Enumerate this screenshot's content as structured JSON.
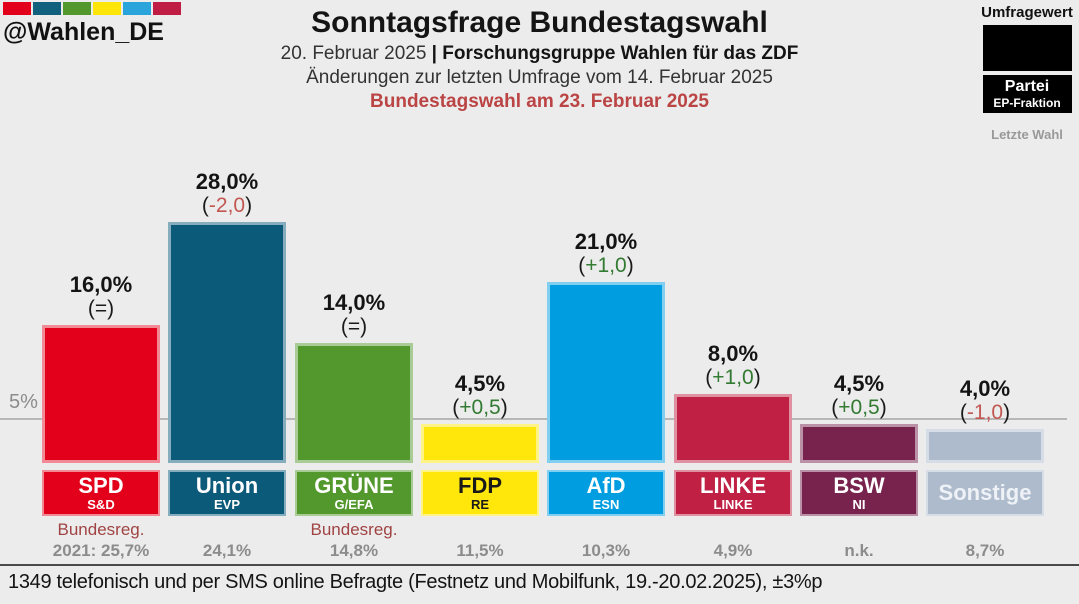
{
  "header": {
    "handle": "@Wahlen_DE",
    "logo_colors": [
      "#e2001a",
      "#10607e",
      "#52982d",
      "#ffe50a",
      "#29a5dc",
      "#c01d45"
    ],
    "title": "Sonntagsfrage Bundestagswahl",
    "subtitle_date": "20. Februar 2025 ",
    "subtitle_separator": "| ",
    "subtitle_source": "Forschungsgruppe Wahlen für das ZDF",
    "subtitle_changes": "Änderungen zur letzten Umfrage vom 14. Februar 2025",
    "subtitle_election": "Bundestagswahl am 23. Februar 2025",
    "subtitle_election_color": "#bb4444"
  },
  "legend": {
    "top_label": "Umfragewert",
    "party_label": "Partei",
    "fraction_label": "EP-Fraktion",
    "bottom_label": "Letzte Wahl"
  },
  "axis": {
    "gridline_label": "5%",
    "gridline_value": 5
  },
  "footer": {
    "note": "1349 telefonisch und per SMS online Befragte (Festnetz und Mobilfunk, 19.-20.02.2025), ±3%p"
  },
  "chart_data": {
    "type": "bar",
    "title": "Sonntagsfrage Bundestagswahl",
    "ylim": [
      0,
      30
    ],
    "gridline_at": 5,
    "legend_position": "top-right",
    "categories": [
      "SPD",
      "Union",
      "GRÜNE",
      "FDP",
      "AfD",
      "LINKE",
      "BSW",
      "Sonstige"
    ],
    "values": [
      16.0,
      28.0,
      14.0,
      4.5,
      21.0,
      8.0,
      4.5,
      4.0
    ],
    "parties": [
      {
        "name": "SPD",
        "fraction": "S&D",
        "value": 16.0,
        "value_label": "16,0%",
        "change": "=",
        "change_color": "#1a1a1a",
        "note": "Bundesreg.",
        "last": "2021: 25,7%",
        "color": "#e2001a",
        "light": "#f18a94",
        "text": "#ffffff"
      },
      {
        "name": "Union",
        "fraction": "EVP",
        "value": 28.0,
        "value_label": "28,0%",
        "change": "-2,0",
        "change_color": "#c25752",
        "note": "",
        "last": "24,1%",
        "color": "#0b5a7a",
        "light": "#85adbd",
        "text": "#ffffff"
      },
      {
        "name": "GRÜNE",
        "fraction": "G/EFA",
        "value": 14.0,
        "value_label": "14,0%",
        "change": "=",
        "change_color": "#1a1a1a",
        "note": "Bundesreg.",
        "last": "14,8%",
        "color": "#52982d",
        "light": "#a9cc96",
        "text": "#ffffff"
      },
      {
        "name": "FDP",
        "fraction": "RE",
        "value": 4.5,
        "value_label": "4,5%",
        "change": "+0,5",
        "change_color": "#337a33",
        "note": "",
        "last": "11,5%",
        "color": "#ffe70b",
        "light": "#fff385",
        "text": "#1a1a1a"
      },
      {
        "name": "AfD",
        "fraction": "ESN",
        "value": 21.0,
        "value_label": "21,0%",
        "change": "+1,0",
        "change_color": "#337a33",
        "note": "",
        "last": "10,3%",
        "color": "#009ee0",
        "light": "#80cff0",
        "text": "#ffffff"
      },
      {
        "name": "LINKE",
        "fraction": "LINKE",
        "value": 8.0,
        "value_label": "8,0%",
        "change": "+1,0",
        "change_color": "#337a33",
        "note": "",
        "last": "4,9%",
        "color": "#bf2044",
        "light": "#df90a1",
        "text": "#ffffff"
      },
      {
        "name": "BSW",
        "fraction": "NI",
        "value": 4.5,
        "value_label": "4,5%",
        "change": "+0,5",
        "change_color": "#337a33",
        "note": "",
        "last": "n.k.",
        "color": "#77234e",
        "light": "#bb91a7",
        "text": "#ffffff"
      },
      {
        "name": "Sonstige",
        "fraction": "",
        "value": 4.0,
        "value_label": "4,0%",
        "change": "-1,0",
        "change_color": "#c25752",
        "note": "",
        "last": "8,7%",
        "color": "#aebbcc",
        "light": "#d7dde6",
        "text": "#eef2f7"
      }
    ]
  }
}
